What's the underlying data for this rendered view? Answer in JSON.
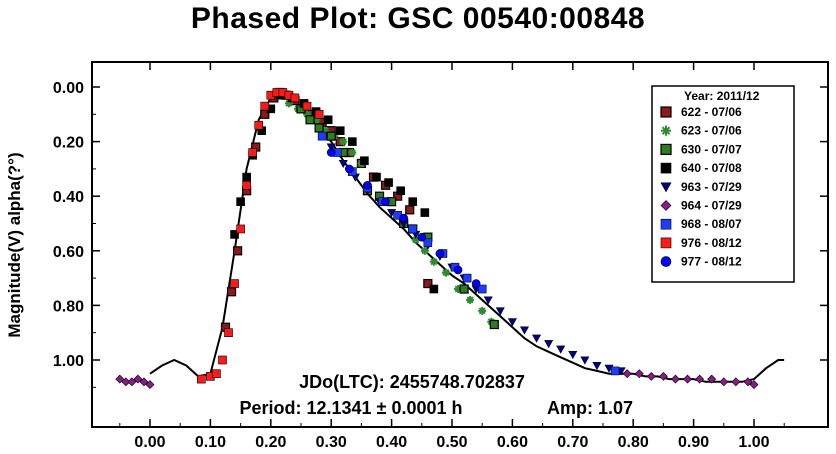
{
  "chart_data": {
    "type": "scatter",
    "title": "Phased Plot: GSC 00540:00848",
    "xlabel": "",
    "ylabel": "Magnitude(V) alpha(?°)",
    "xlim": [
      -0.1,
      1.12
    ],
    "ylim": [
      1.2,
      -0.12
    ],
    "y_reversed": true,
    "x_ticks": [
      0.0,
      0.1,
      0.2,
      0.3,
      0.4,
      0.5,
      0.6,
      0.7,
      0.8,
      0.9,
      1.0
    ],
    "x_tick_labels": [
      "0.00",
      "0.10",
      "0.20",
      "0.30",
      "0.40",
      "0.50",
      "0.60",
      "0.70",
      "0.80",
      "0.90",
      "1.00"
    ],
    "y_ticks": [
      0.0,
      0.2,
      0.4,
      0.6,
      0.8,
      1.0
    ],
    "y_tick_labels": [
      "0.00",
      "0.20",
      "0.40",
      "0.60",
      "0.80",
      "1.00"
    ],
    "grid": false,
    "legend": {
      "title": "Year: 2011/12",
      "placement": "top-right",
      "entries": [
        {
          "label": "622 - 07/06",
          "marker": "square-outlined",
          "color": "#8b1a1a"
        },
        {
          "label": "623 - 07/06",
          "marker": "asterisk",
          "color": "#2e8b2e"
        },
        {
          "label": "630 - 07/07",
          "marker": "square-outlined",
          "color": "#2e7d1e"
        },
        {
          "label": "640 - 07/08",
          "marker": "square",
          "color": "#000000"
        },
        {
          "label": "963 - 07/29",
          "marker": "triangle-down",
          "color": "#00008b"
        },
        {
          "label": "964 - 07/29",
          "marker": "diamond",
          "color": "#8b1a8b"
        },
        {
          "label": "968 - 08/07",
          "marker": "square",
          "color": "#1e3cff"
        },
        {
          "label": "976 - 08/12",
          "marker": "square",
          "color": "#ff1a1a"
        },
        {
          "label": "977 - 08/12",
          "marker": "circle",
          "color": "#0000ff"
        }
      ]
    },
    "annotations": [
      "JDo(LTC): 2455748.702837",
      "Period: 12.1341 ± 0.0001 h",
      "Amp: 1.07"
    ],
    "fit_curve": {
      "x": [
        0.0,
        0.02,
        0.04,
        0.06,
        0.08,
        0.1,
        0.12,
        0.14,
        0.16,
        0.18,
        0.2,
        0.22,
        0.24,
        0.26,
        0.28,
        0.3,
        0.32,
        0.34,
        0.36,
        0.38,
        0.4,
        0.42,
        0.44,
        0.46,
        0.48,
        0.5,
        0.52,
        0.54,
        0.56,
        0.58,
        0.6,
        0.62,
        0.64,
        0.66,
        0.68,
        0.7,
        0.72,
        0.74,
        0.76,
        0.78,
        0.8,
        0.82,
        0.84,
        0.86,
        0.88,
        0.9,
        0.92,
        0.94,
        0.96,
        0.98,
        1.0,
        1.02,
        1.04,
        1.05
      ],
      "y": [
        1.05,
        1.02,
        1.0,
        1.02,
        1.06,
        1.05,
        0.88,
        0.6,
        0.3,
        0.12,
        0.04,
        0.02,
        0.05,
        0.1,
        0.15,
        0.2,
        0.27,
        0.33,
        0.39,
        0.44,
        0.48,
        0.52,
        0.57,
        0.61,
        0.65,
        0.69,
        0.72,
        0.76,
        0.8,
        0.84,
        0.88,
        0.92,
        0.95,
        0.97,
        0.99,
        1.01,
        1.03,
        1.04,
        1.05,
        1.05,
        1.05,
        1.06,
        1.06,
        1.07,
        1.07,
        1.07,
        1.08,
        1.08,
        1.08,
        1.08,
        1.07,
        1.03,
        1.0,
        1.0
      ]
    },
    "series": [
      {
        "name": "622 - 07/06",
        "x": [
          0.125,
          0.135,
          0.145,
          0.16,
          0.175,
          0.19,
          0.205,
          0.215,
          0.225,
          0.24,
          0.255,
          0.27,
          0.285,
          0.3,
          0.315,
          0.33,
          0.35,
          0.37,
          0.39,
          0.41,
          0.43,
          0.46
        ],
        "y": [
          0.88,
          0.75,
          0.6,
          0.38,
          0.22,
          0.1,
          0.04,
          0.02,
          0.03,
          0.05,
          0.08,
          0.1,
          0.13,
          0.16,
          0.2,
          0.24,
          0.28,
          0.33,
          0.36,
          0.4,
          0.45,
          0.72
        ]
      },
      {
        "name": "623 - 07/06",
        "x": [
          0.23,
          0.245,
          0.26,
          0.275,
          0.29,
          0.305,
          0.32,
          0.335,
          0.35,
          0.44,
          0.455,
          0.47,
          0.49,
          0.51,
          0.53,
          0.55,
          0.565
        ],
        "y": [
          0.06,
          0.08,
          0.1,
          0.12,
          0.16,
          0.18,
          0.2,
          0.24,
          0.28,
          0.56,
          0.6,
          0.64,
          0.68,
          0.74,
          0.78,
          0.82,
          0.86
        ]
      },
      {
        "name": "630 - 07/07",
        "x": [
          0.25,
          0.265,
          0.28,
          0.3,
          0.32,
          0.36,
          0.38,
          0.4,
          0.42,
          0.435,
          0.46,
          0.52,
          0.57
        ],
        "y": [
          0.08,
          0.12,
          0.15,
          0.18,
          0.24,
          0.38,
          0.4,
          0.42,
          0.5,
          0.52,
          0.55,
          0.74,
          0.87
        ]
      },
      {
        "name": "640 - 07/08",
        "x": [
          0.14,
          0.15,
          0.16,
          0.17,
          0.185,
          0.2,
          0.215,
          0.235,
          0.255,
          0.275,
          0.295,
          0.315,
          0.335,
          0.355,
          0.375,
          0.395,
          0.415,
          0.435,
          0.455,
          0.47
        ],
        "y": [
          0.54,
          0.42,
          0.33,
          0.25,
          0.16,
          0.08,
          0.03,
          0.04,
          0.06,
          0.09,
          0.12,
          0.16,
          0.2,
          0.27,
          0.33,
          0.35,
          0.38,
          0.42,
          0.46,
          0.74
        ]
      },
      {
        "name": "963 - 07/29",
        "x": [
          0.3,
          0.32,
          0.34,
          0.36,
          0.38,
          0.4,
          0.42,
          0.44,
          0.46,
          0.48,
          0.5,
          0.52,
          0.54,
          0.56,
          0.58,
          0.6,
          0.62,
          0.64,
          0.66,
          0.68,
          0.7,
          0.72,
          0.74,
          0.76,
          0.78
        ],
        "y": [
          0.22,
          0.28,
          0.33,
          0.38,
          0.42,
          0.46,
          0.5,
          0.54,
          0.58,
          0.62,
          0.66,
          0.7,
          0.74,
          0.78,
          0.82,
          0.86,
          0.89,
          0.92,
          0.94,
          0.96,
          0.98,
          1.0,
          1.02,
          1.03,
          1.04
        ]
      },
      {
        "name": "964 - 07/29",
        "x": [
          -0.05,
          -0.04,
          -0.03,
          -0.02,
          -0.01,
          0.0,
          0.79,
          0.81,
          0.83,
          0.85,
          0.87,
          0.89,
          0.91,
          0.93,
          0.95,
          0.97,
          0.99,
          1.0
        ],
        "y": [
          1.07,
          1.08,
          1.08,
          1.07,
          1.08,
          1.09,
          1.05,
          1.05,
          1.06,
          1.06,
          1.07,
          1.07,
          1.07,
          1.07,
          1.08,
          1.08,
          1.08,
          1.09
        ]
      },
      {
        "name": "968 - 08/07",
        "x": [
          0.285,
          0.31,
          0.335,
          0.36,
          0.385,
          0.41,
          0.435,
          0.46,
          0.485,
          0.505,
          0.525,
          0.55,
          0.77
        ],
        "y": [
          0.18,
          0.24,
          0.31,
          0.37,
          0.42,
          0.47,
          0.52,
          0.57,
          0.61,
          0.66,
          0.7,
          0.74,
          1.04
        ]
      },
      {
        "name": "976 - 08/12",
        "x": [
          0.085,
          0.1,
          0.11,
          0.12,
          0.13,
          0.14,
          0.15,
          0.16,
          0.17,
          0.18,
          0.19,
          0.2,
          0.21,
          0.22,
          0.23,
          0.24,
          0.26,
          0.28
        ],
        "y": [
          1.07,
          1.06,
          1.05,
          1.0,
          0.9,
          0.72,
          0.52,
          0.36,
          0.24,
          0.14,
          0.07,
          0.03,
          0.02,
          0.02,
          0.03,
          0.04,
          0.07,
          0.1
        ]
      },
      {
        "name": "977 - 08/12",
        "x": [
          0.3,
          0.33,
          0.36,
          0.39,
          0.42,
          0.45,
          0.48,
          0.51,
          0.54
        ],
        "y": [
          0.24,
          0.3,
          0.36,
          0.42,
          0.48,
          0.55,
          0.61,
          0.67,
          0.72
        ]
      }
    ]
  }
}
